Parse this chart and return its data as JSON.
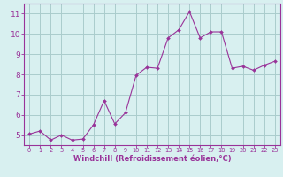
{
  "x": [
    0,
    1,
    2,
    3,
    4,
    5,
    6,
    7,
    8,
    9,
    10,
    11,
    12,
    13,
    14,
    15,
    16,
    17,
    18,
    19,
    20,
    21,
    22,
    23
  ],
  "y": [
    5.05,
    5.2,
    4.75,
    5.0,
    4.75,
    4.8,
    5.5,
    6.7,
    5.55,
    6.1,
    7.95,
    8.35,
    8.3,
    9.8,
    10.2,
    11.1,
    9.8,
    10.1,
    10.1,
    8.3,
    8.4,
    8.2,
    8.45,
    8.65
  ],
  "line_color": "#993399",
  "marker": "D",
  "marker_size": 2.0,
  "bg_color": "#d8f0f0",
  "grid_color": "#aacccc",
  "xlabel": "Windchill (Refroidissement éolien,°C)",
  "xlabel_color": "#993399",
  "tick_color": "#993399",
  "ylim": [
    4.5,
    11.5
  ],
  "xlim": [
    -0.5,
    23.5
  ],
  "yticks": [
    5,
    6,
    7,
    8,
    9,
    10,
    11
  ],
  "xticks": [
    0,
    1,
    2,
    3,
    4,
    5,
    6,
    7,
    8,
    9,
    10,
    11,
    12,
    13,
    14,
    15,
    16,
    17,
    18,
    19,
    20,
    21,
    22,
    23
  ],
  "ylabel_fontsize": 7.0,
  "xlabel_fontsize": 6.0,
  "xtick_fontsize": 4.8,
  "ytick_fontsize": 6.5
}
